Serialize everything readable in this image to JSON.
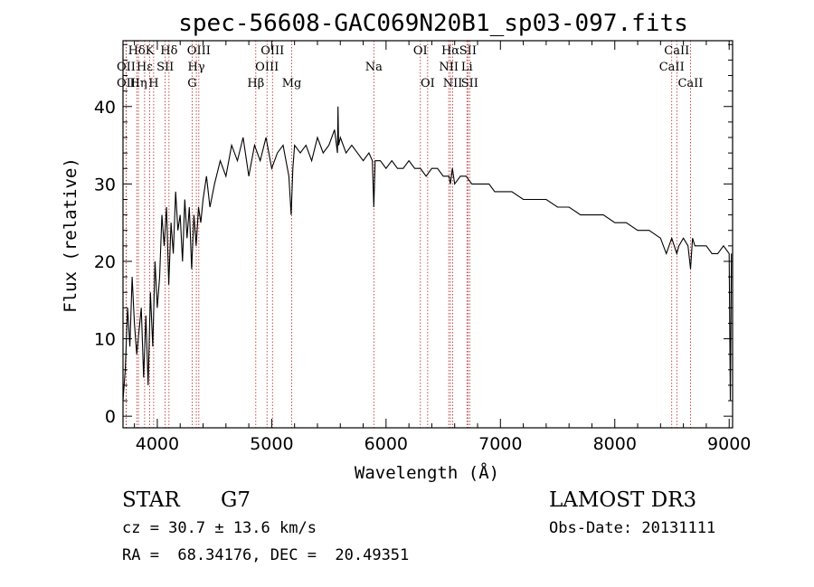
{
  "chart_data": {
    "type": "line",
    "title": "spec-56608-GAC069N20B1_sp03-097.fits",
    "xlabel": "Wavelength (Å)",
    "ylabel": "Flux (relative)",
    "xlim": [
      3700,
      9030
    ],
    "ylim": [
      -1.5,
      48.5
    ],
    "xticks": [
      4000,
      5000,
      6000,
      7000,
      8000,
      9000
    ],
    "yticks": [
      0,
      10,
      20,
      30,
      40
    ],
    "series": [
      {
        "name": "spectrum",
        "x": [
          3700,
          3720,
          3740,
          3760,
          3780,
          3800,
          3820,
          3840,
          3860,
          3880,
          3900,
          3920,
          3940,
          3960,
          3980,
          4000,
          4020,
          4040,
          4060,
          4080,
          4100,
          4120,
          4140,
          4160,
          4180,
          4200,
          4220,
          4240,
          4260,
          4280,
          4300,
          4320,
          4340,
          4360,
          4380,
          4400,
          4430,
          4460,
          4500,
          4550,
          4600,
          4650,
          4700,
          4750,
          4800,
          4850,
          4900,
          4950,
          5000,
          5050,
          5100,
          5150,
          5170,
          5185,
          5200,
          5250,
          5300,
          5350,
          5400,
          5450,
          5500,
          5550,
          5575,
          5580,
          5585,
          5600,
          5650,
          5700,
          5750,
          5800,
          5850,
          5880,
          5893,
          5905,
          5950,
          6000,
          6050,
          6100,
          6150,
          6200,
          6250,
          6300,
          6350,
          6400,
          6450,
          6500,
          6550,
          6563,
          6580,
          6600,
          6650,
          6700,
          6750,
          6800,
          6850,
          6900,
          6950,
          7000,
          7100,
          7200,
          7300,
          7400,
          7500,
          7600,
          7700,
          7800,
          7900,
          8000,
          8100,
          8200,
          8300,
          8400,
          8450,
          8498,
          8520,
          8542,
          8560,
          8600,
          8640,
          8662,
          8680,
          8700,
          8750,
          8800,
          8850,
          8900,
          8950,
          9000,
          9010,
          9020
        ],
        "values": [
          2,
          6,
          14,
          9,
          18,
          12,
          8,
          11,
          14,
          5,
          13,
          4,
          16,
          9,
          20,
          14,
          18,
          26,
          22,
          27,
          17,
          25,
          21,
          29,
          24,
          26,
          20,
          28,
          23,
          27,
          19,
          26,
          22,
          27,
          25,
          28,
          31,
          27,
          30,
          33,
          31,
          35,
          33,
          36,
          31,
          35,
          33,
          36,
          32,
          34,
          35,
          31,
          26,
          32,
          35,
          34,
          35,
          33,
          36,
          34,
          35,
          37,
          34,
          40,
          35,
          36,
          34,
          35,
          34,
          33,
          34,
          33,
          27,
          33,
          33,
          32,
          33,
          32,
          32,
          33,
          32,
          32,
          31,
          32,
          32,
          31,
          31,
          30,
          32,
          30,
          31,
          31,
          30,
          30,
          30,
          30,
          29,
          29,
          29,
          28,
          28,
          28,
          27,
          27,
          26,
          26,
          26,
          25,
          25,
          24,
          24,
          23,
          21,
          23,
          22,
          21,
          22,
          23,
          22,
          19,
          23,
          22,
          22,
          22,
          21,
          21,
          22,
          21,
          2,
          21
        ]
      }
    ],
    "spectral_lines": [
      {
        "label": "Hδ",
        "wave": 3820,
        "row": 0
      },
      {
        "label": "K",
        "wave": 3934,
        "row": 0
      },
      {
        "label": "Hδ",
        "wave": 4102,
        "row": 0
      },
      {
        "label": "OIII",
        "wave": 4363,
        "row": 0
      },
      {
        "label": "OIII",
        "wave": 5007,
        "row": 0
      },
      {
        "label": "OI",
        "wave": 6300,
        "row": 0
      },
      {
        "label": "Hα",
        "wave": 6563,
        "row": 0
      },
      {
        "label": "SII",
        "wave": 6716,
        "row": 0
      },
      {
        "label": "CaII",
        "wave": 8542,
        "row": 0
      },
      {
        "label": "OII",
        "wave": 3727,
        "row": 1
      },
      {
        "label": "Hε",
        "wave": 3889,
        "row": 1
      },
      {
        "label": "SII",
        "wave": 4069,
        "row": 1
      },
      {
        "label": "Hγ",
        "wave": 4341,
        "row": 1
      },
      {
        "label": "OIII",
        "wave": 4959,
        "row": 1
      },
      {
        "label": "NII",
        "wave": 6548,
        "row": 1
      },
      {
        "label": "Li",
        "wave": 6707,
        "row": 1
      },
      {
        "label": "CaII",
        "wave": 8498,
        "row": 1
      },
      {
        "label": "OII",
        "wave": 3727,
        "row": 2
      },
      {
        "label": "Hη",
        "wave": 3835,
        "row": 2
      },
      {
        "label": "H",
        "wave": 3968,
        "row": 2
      },
      {
        "label": "G",
        "wave": 4305,
        "row": 2
      },
      {
        "label": "Hβ",
        "wave": 4861,
        "row": 2
      },
      {
        "label": "Mg",
        "wave": 5175,
        "row": 2
      },
      {
        "label": "Na",
        "wave": 5893,
        "row": 1
      },
      {
        "label": "OI",
        "wave": 6364,
        "row": 2
      },
      {
        "label": "NII",
        "wave": 6583,
        "row": 2
      },
      {
        "label": "SII",
        "wave": 6731,
        "row": 2
      },
      {
        "label": "CaII",
        "wave": 8662,
        "row": 2
      }
    ]
  },
  "info": {
    "object_class": "STAR",
    "subclass": "G7",
    "survey": "LAMOST DR3",
    "redshift": "cz = 30.7 ± 13.6 km/s",
    "obs_date": "Obs-Date: 20131111",
    "coords": "RA =  68.34176, DEC =  20.49351"
  },
  "colors": {
    "line_marker": "#b22222",
    "spectrum": "#000000"
  }
}
